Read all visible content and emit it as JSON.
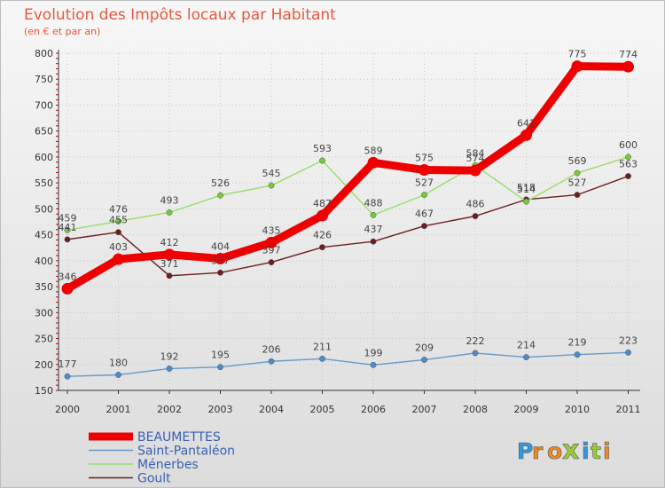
{
  "chart_data": {
    "type": "line",
    "title": "Evolution des Impôts locaux par Habitant",
    "subtitle": "(en € et par an)",
    "xlabel": "",
    "ylabel": "",
    "ylim": [
      150,
      800
    ],
    "yticks": [
      150,
      200,
      250,
      300,
      350,
      400,
      450,
      500,
      550,
      600,
      650,
      700,
      750,
      800
    ],
    "categories": [
      "2000",
      "2001",
      "2002",
      "2003",
      "2004",
      "2005",
      "2006",
      "2007",
      "2008",
      "2009",
      "2010",
      "2011"
    ],
    "series": [
      {
        "name": "Goult",
        "color": "#6b1e1e",
        "point_color": "#6b1e1e",
        "values": [
          441,
          455,
          371,
          377,
          397,
          426,
          437,
          467,
          486,
          518,
          527,
          563
        ]
      },
      {
        "name": "Ménerbes",
        "color": "#99dd66",
        "point_color": "#77c93a",
        "values": [
          459,
          476,
          493,
          526,
          545,
          593,
          488,
          527,
          584,
          514,
          569,
          600
        ]
      },
      {
        "name": "Saint-Pantaléon",
        "color": "#6699cc",
        "point_color": "#4d8cc8",
        "values": [
          177,
          180,
          192,
          195,
          206,
          211,
          199,
          209,
          222,
          214,
          219,
          223
        ]
      },
      {
        "name": "BEAUMETTES",
        "color": "#ee0000",
        "point_color": "#ee0000",
        "values": [
          346,
          403,
          412,
          404,
          435,
          487,
          589,
          575,
          574,
          642,
          775,
          774
        ]
      }
    ],
    "legend": [
      "BEAUMETTES",
      "Saint-Pantaléon",
      "Ménerbes",
      "Goult"
    ],
    "legend_position": "bottom-left",
    "grid": true
  },
  "brand": {
    "letters": [
      "P",
      "r",
      "o",
      "x",
      "i",
      "t",
      "i"
    ],
    "colors": [
      "#3399dd",
      "#ee8822",
      "#ee8822",
      "#99cc33",
      "#3399dd",
      "#99cc33",
      "#ee8822"
    ]
  }
}
